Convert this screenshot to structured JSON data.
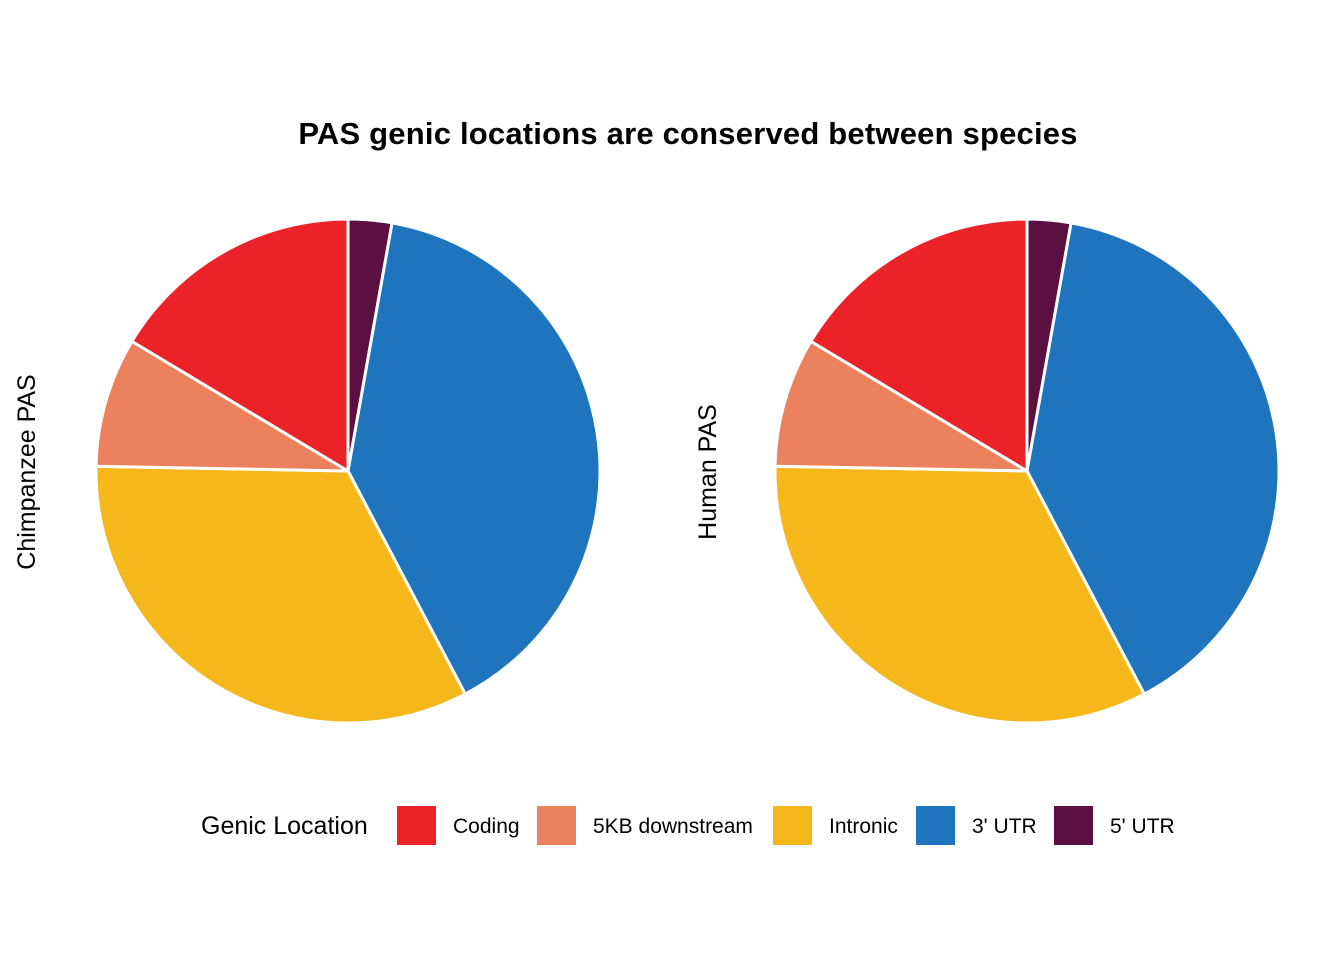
{
  "chart_data": {
    "type": "pie",
    "title": "PAS genic locations are conserved between species",
    "legend": {
      "title": "Genic Location",
      "placement": "bottom",
      "entries": [
        {
          "name": "Coding",
          "color": "#EC2229"
        },
        {
          "name": "5KB downstream",
          "color": "#EC815D"
        },
        {
          "name": "Intronic",
          "color": "#F6B71B"
        },
        {
          "name": "3' UTR",
          "color": "#1F75BD"
        },
        {
          "name": "5' UTR",
          "color": "#5C0F41"
        }
      ]
    },
    "pies": [
      {
        "label": "Chimpanzee PAS",
        "categories": [
          "5' UTR",
          "3' UTR",
          "Intronic",
          "5KB downstream",
          "Coding"
        ],
        "values": [
          2.8,
          39.5,
          33.0,
          8.3,
          16.4
        ]
      },
      {
        "label": "Human PAS",
        "categories": [
          "5' UTR",
          "3' UTR",
          "Intronic",
          "5KB downstream",
          "Coding"
        ],
        "values": [
          2.8,
          39.5,
          33.0,
          8.3,
          16.4
        ]
      }
    ],
    "unit": "%"
  }
}
